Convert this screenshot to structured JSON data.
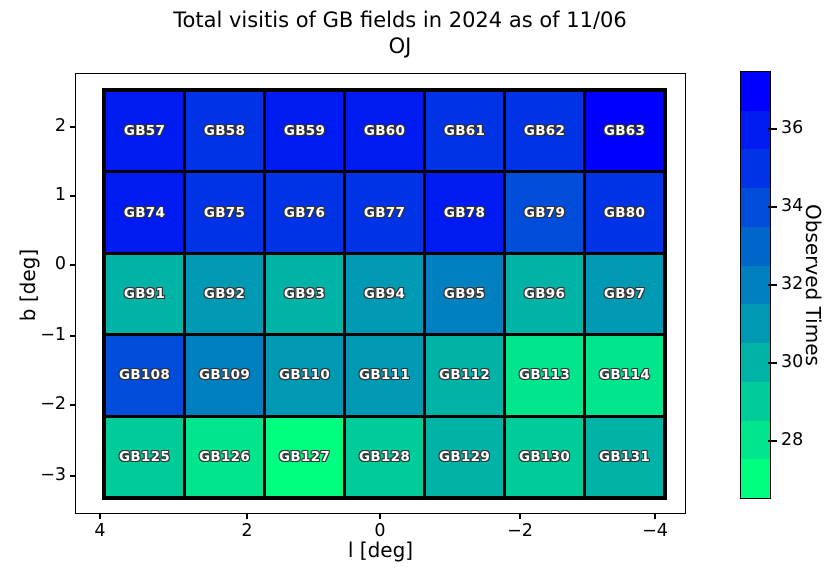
{
  "title": {
    "line1": "Total visitis of GB fields in 2024 as of 11/06",
    "line2": "OJ"
  },
  "axes": {
    "xlabel": "l [deg]",
    "ylabel": "b [deg]",
    "x_ticks": [
      "4",
      "2",
      "0",
      "−2",
      "−4"
    ],
    "y_ticks": [
      "2",
      "1",
      "0",
      "−1",
      "−2",
      "−3"
    ]
  },
  "colorbar": {
    "label": "Observed Times",
    "tick_values": [
      36,
      34,
      32,
      30,
      28
    ],
    "range_min": 26.5,
    "range_max": 37.5,
    "levels": [
      {
        "value": 37,
        "color": "#0000FF"
      },
      {
        "value": 36,
        "color": "#001AF2"
      },
      {
        "value": 35,
        "color": "#0033E6"
      },
      {
        "value": 34,
        "color": "#004DD9"
      },
      {
        "value": 33,
        "color": "#0066CC"
      },
      {
        "value": 32,
        "color": "#0080BF"
      },
      {
        "value": 31,
        "color": "#0099B3"
      },
      {
        "value": 30,
        "color": "#00B3A6"
      },
      {
        "value": 29,
        "color": "#00CC99"
      },
      {
        "value": 28,
        "color": "#00E68C"
      },
      {
        "value": 27,
        "color": "#00FF80"
      }
    ]
  },
  "chart_data": {
    "type": "heatmap",
    "title": "Total visitis of GB fields in 2024 as of 11/06 OJ",
    "xlabel": "l [deg]",
    "ylabel": "b [deg]",
    "colorbar_label": "Observed Times",
    "colormap": "winter reversed, quantized to integer levels",
    "value_range": [
      27,
      37
    ],
    "x_axis_range": [
      4.3,
      -4.4
    ],
    "y_axis_range": [
      -3.4,
      2.6
    ],
    "rows": [
      {
        "b_center": 2.0,
        "fields": [
          "GB57",
          "GB58",
          "GB59",
          "GB60",
          "GB61",
          "GB62",
          "GB63"
        ],
        "values": [
          36,
          35,
          36,
          36,
          35,
          35,
          37
        ]
      },
      {
        "b_center": 0.8,
        "fields": [
          "GB74",
          "GB75",
          "GB76",
          "GB77",
          "GB78",
          "GB79",
          "GB80"
        ],
        "values": [
          36,
          35,
          35,
          35,
          36,
          34,
          35
        ]
      },
      {
        "b_center": -0.4,
        "fields": [
          "GB91",
          "GB92",
          "GB93",
          "GB94",
          "GB95",
          "GB96",
          "GB97"
        ],
        "values": [
          30,
          31,
          30,
          31,
          32,
          30,
          31
        ]
      },
      {
        "b_center": -1.6,
        "fields": [
          "GB108",
          "GB109",
          "GB110",
          "GB111",
          "GB112",
          "GB113",
          "GB114"
        ],
        "values": [
          34,
          32,
          31,
          31,
          30,
          28,
          28
        ]
      },
      {
        "b_center": -2.8,
        "fields": [
          "GB125",
          "GB126",
          "GB127",
          "GB128",
          "GB129",
          "GB130",
          "GB131"
        ],
        "values": [
          29,
          28,
          27,
          29,
          30,
          29,
          30
        ]
      }
    ]
  }
}
